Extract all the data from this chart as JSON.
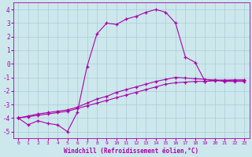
{
  "xlabel": "Windchill (Refroidissement éolien,°C)",
  "bg_color": "#cce8ec",
  "grid_color": "#aaccd4",
  "line_color": "#aa00aa",
  "x_hours": [
    0,
    1,
    2,
    3,
    4,
    5,
    6,
    7,
    8,
    9,
    10,
    11,
    12,
    13,
    14,
    15,
    16,
    17,
    18,
    19,
    20,
    21,
    22,
    23
  ],
  "line1": [
    -4.0,
    -4.5,
    -4.2,
    -4.4,
    -4.5,
    -5.0,
    -3.6,
    -0.2,
    2.2,
    3.0,
    2.9,
    3.3,
    3.5,
    3.8,
    4.0,
    3.8,
    3.0,
    0.5,
    0.1,
    -1.3,
    -1.2,
    -1.3,
    -1.3,
    -1.3
  ],
  "line2": [
    -4.0,
    -3.9,
    -3.8,
    -3.7,
    -3.6,
    -3.5,
    -3.3,
    -3.1,
    -2.9,
    -2.7,
    -2.5,
    -2.3,
    -2.1,
    -1.9,
    -1.7,
    -1.5,
    -1.4,
    -1.35,
    -1.3,
    -1.3,
    -1.25,
    -1.25,
    -1.2,
    -1.2
  ],
  "line3": [
    -4.0,
    -3.85,
    -3.7,
    -3.6,
    -3.5,
    -3.4,
    -3.2,
    -2.9,
    -2.6,
    -2.4,
    -2.1,
    -1.9,
    -1.7,
    -1.5,
    -1.3,
    -1.15,
    -1.0,
    -1.05,
    -1.1,
    -1.15,
    -1.2,
    -1.2,
    -1.2,
    -1.2
  ],
  "ylim": [
    -5.5,
    4.5
  ],
  "yticks": [
    -5,
    -4,
    -3,
    -2,
    -1,
    0,
    1,
    2,
    3,
    4
  ],
  "xticks": [
    0,
    1,
    2,
    3,
    4,
    5,
    6,
    7,
    8,
    9,
    10,
    11,
    12,
    13,
    14,
    15,
    16,
    17,
    18,
    19,
    20,
    21,
    22,
    23
  ]
}
